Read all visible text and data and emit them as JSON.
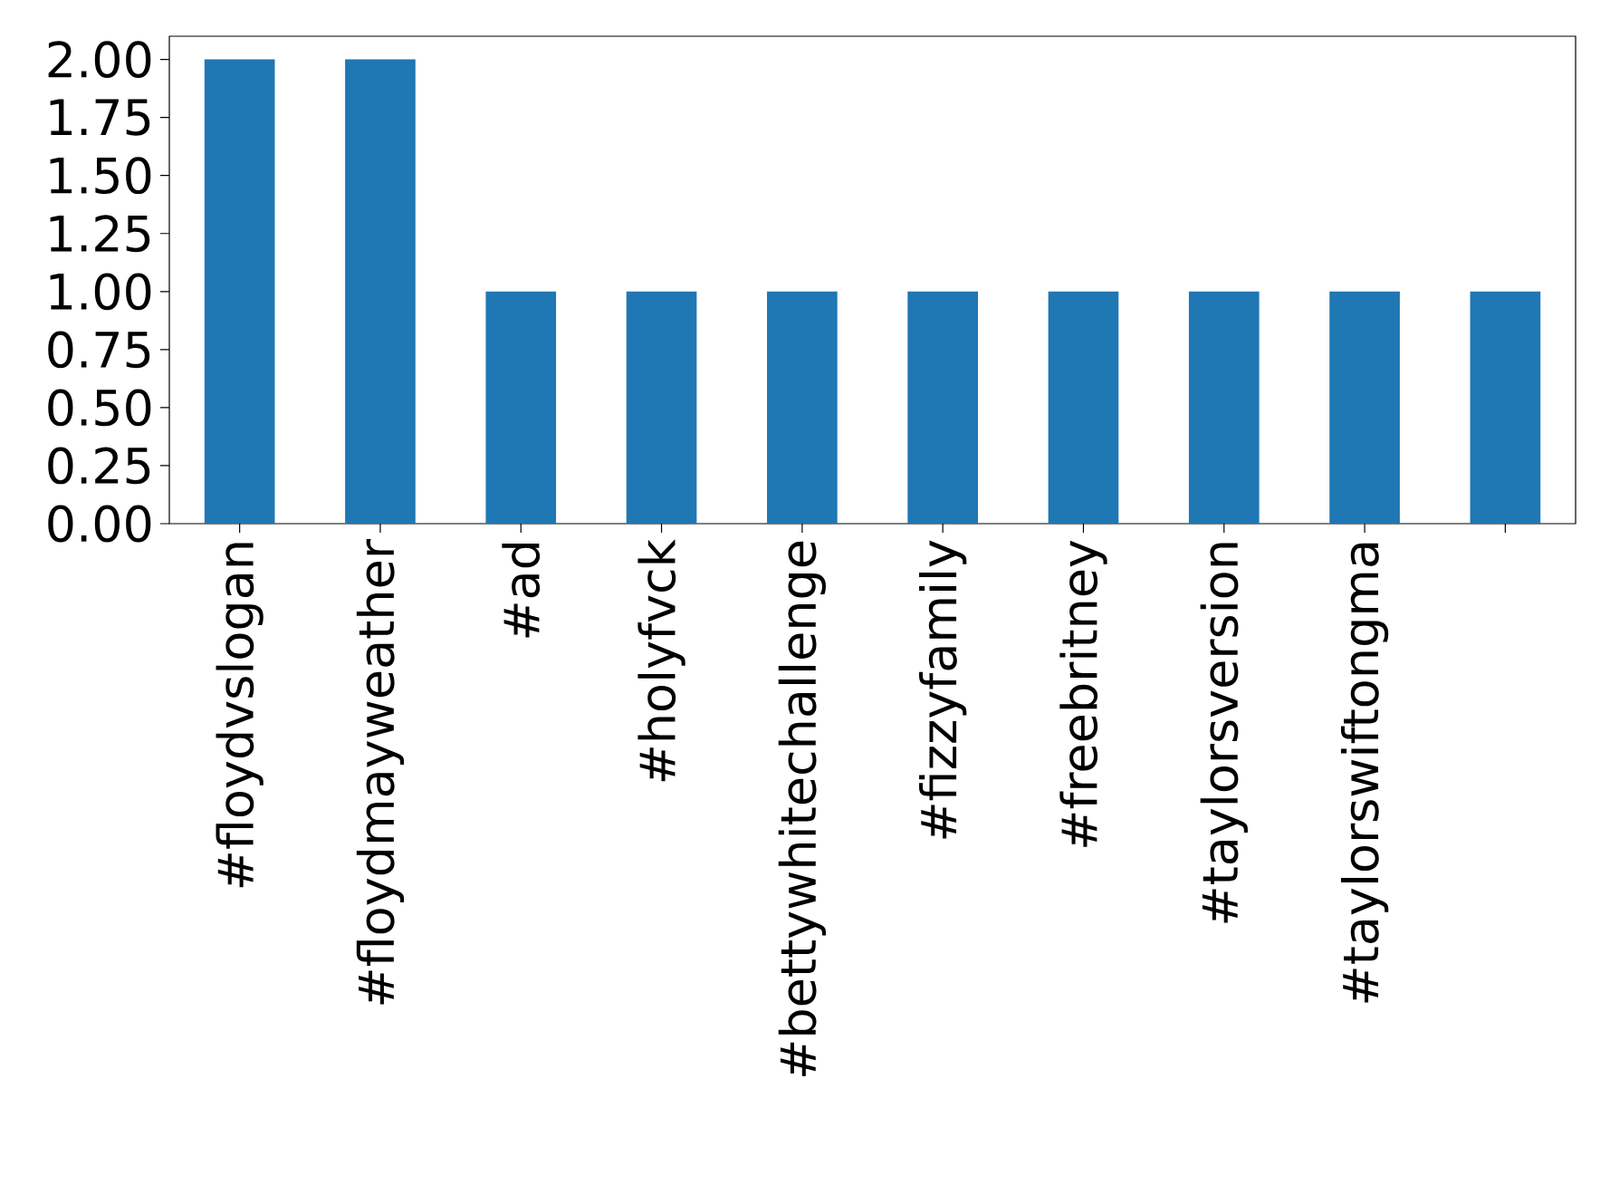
{
  "chart_data": {
    "type": "bar",
    "categories": [
      "#floydvslogan",
      "#floydmayweather",
      "#ad",
      "#holyfvck",
      "#bettywhitechallenge",
      "#fizzyfamily",
      "#freebritney",
      "#taylorsversion",
      "#taylorswiftongma",
      null
    ],
    "values": [
      2,
      2,
      1,
      1,
      1,
      1,
      1,
      1,
      1,
      1
    ],
    "color": "#1f77b4",
    "ylim": [
      0,
      2.1
    ],
    "yticks": [
      {
        "value": 0,
        "label": "0.00"
      },
      {
        "value": 0.25,
        "label": "0.25"
      },
      {
        "value": 0.5,
        "label": "0.50"
      },
      {
        "value": 0.75,
        "label": "0.75"
      },
      {
        "value": 1,
        "label": "1.00"
      },
      {
        "value": 1.25,
        "label": "1.25"
      },
      {
        "value": 1.5,
        "label": "1.50"
      },
      {
        "value": 1.75,
        "label": "1.75"
      },
      {
        "value": 2,
        "label": "2.00"
      }
    ],
    "grid": false
  }
}
